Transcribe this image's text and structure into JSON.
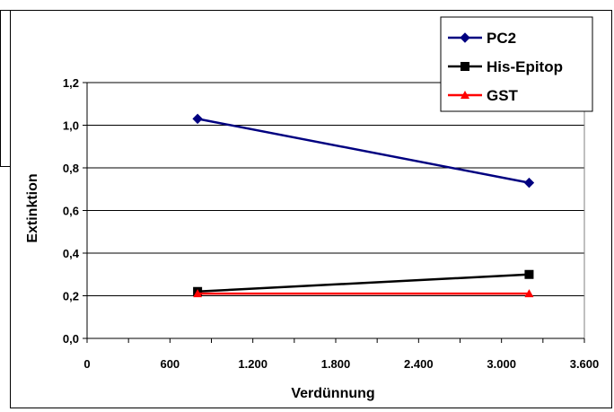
{
  "chart_data": {
    "type": "line",
    "title": "",
    "xlabel": "Verdünnung",
    "ylabel": "Extinktion",
    "xlim": [
      0,
      3600
    ],
    "ylim": [
      0,
      1.2
    ],
    "x_ticks": [
      0,
      600,
      1200,
      1800,
      2400,
      3000,
      3600
    ],
    "x_tick_labels": [
      "0",
      "600",
      "1.200",
      "1.800",
      "2.400",
      "3.000",
      "3.600"
    ],
    "y_ticks": [
      0,
      0.2,
      0.4,
      0.6,
      0.8,
      1.0,
      1.2
    ],
    "y_tick_labels": [
      "0,0",
      "0,2",
      "0,4",
      "0,6",
      "0,8",
      "1,0",
      "1,2"
    ],
    "grid": "horizontal",
    "legend_position": "top-right",
    "series": [
      {
        "name": "PC2",
        "color": "#000080",
        "marker": "diamond",
        "x": [
          800,
          3200
        ],
        "y": [
          1.03,
          0.73
        ]
      },
      {
        "name": "His-Epitop",
        "color": "#000000",
        "marker": "square",
        "x": [
          800,
          3200
        ],
        "y": [
          0.22,
          0.3
        ]
      },
      {
        "name": "GST",
        "color": "#ff0000",
        "marker": "triangle",
        "x": [
          800,
          3200
        ],
        "y": [
          0.21,
          0.21
        ]
      }
    ]
  }
}
